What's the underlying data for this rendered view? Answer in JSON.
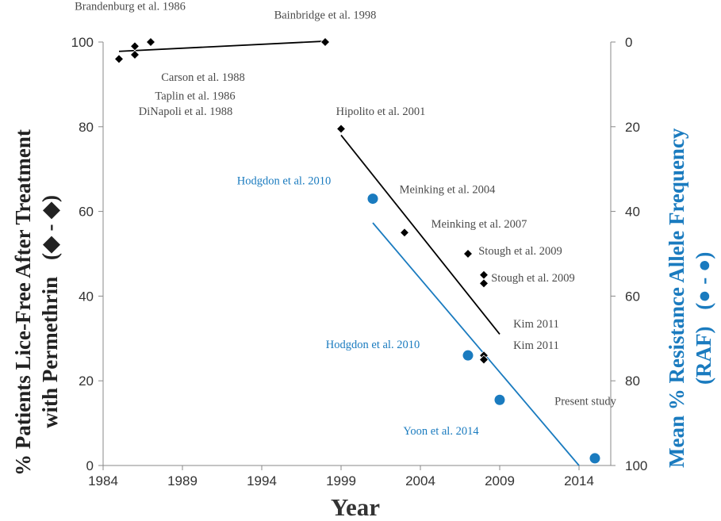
{
  "colors": {
    "black_series": "#000000",
    "blue_series": "#1a7bbf",
    "text_gray": "#4a4a4a",
    "axis": "#888888"
  },
  "chart_data": {
    "type": "scatter",
    "xlabel": "Year",
    "ylabel_left": "% Patients Lice-Free After Treatment with Permethrin (◆ - ◆)",
    "ylabel_left_lines": [
      "% Patients Lice-Free After Treatment",
      "with Permethrin"
    ],
    "ylabel_left_marker": "(◆ - ◆)",
    "ylabel_right": "Mean % Resistance Allele Frequency (RAF) (● - ●)",
    "ylabel_right_lines": [
      "Mean % Resistance Allele Frequency",
      "(RAF)"
    ],
    "ylabel_right_marker": "(● - ●)",
    "xlim": [
      1984,
      2016
    ],
    "ylim_left": [
      0,
      100
    ],
    "ylim_right": [
      100,
      0
    ],
    "right_axis_inverted": true,
    "x_ticks": [
      "1984",
      "1989",
      "1994",
      "1999",
      "2004",
      "2009",
      "2014"
    ],
    "y_left_ticks": [
      "0",
      "20",
      "40",
      "60",
      "80",
      "100"
    ],
    "y_right_ticks": [
      "100",
      "80",
      "60",
      "40",
      "20",
      "0"
    ],
    "grid": false,
    "series": [
      {
        "marker": "diamond",
        "axis": "left",
        "color": "#000000",
        "points": [
          {
            "x": 1985,
            "y": 96
          },
          {
            "x": 1986,
            "y": 99
          },
          {
            "x": 1986,
            "y": 97
          },
          {
            "x": 1987,
            "y": 100
          },
          {
            "x": 1998,
            "y": 100
          },
          {
            "x": 1999,
            "y": 79.5
          },
          {
            "x": 2003,
            "y": 55
          },
          {
            "x": 2007,
            "y": 50
          },
          {
            "x": 2008,
            "y": 45
          },
          {
            "x": 2008,
            "y": 43
          },
          {
            "x": 2008,
            "y": 26
          },
          {
            "x": 2008,
            "y": 25
          }
        ],
        "trend_lines": [
          {
            "x": [
              1985,
              1998
            ],
            "y": [
              97.8,
              100.2
            ]
          },
          {
            "x": [
              1999,
              2009
            ],
            "y": [
              78,
              31
            ]
          }
        ]
      },
      {
        "marker": "circle",
        "axis": "right",
        "color": "#1a7bbf",
        "points": [
          {
            "x": 2001,
            "y": 37
          },
          {
            "x": 2007,
            "y": 74
          },
          {
            "x": 2009,
            "y": 84.5
          },
          {
            "x": 2015,
            "y": 98.3
          }
        ],
        "trend_lines": [
          {
            "x": [
              2001,
              2014
            ],
            "y": [
              42.7,
              100
            ]
          }
        ]
      }
    ],
    "annotations": [
      {
        "text": "Brandenburg et al. 1986",
        "x": 1985.7,
        "y": 107.6,
        "color": "gray",
        "anchor": "middle"
      },
      {
        "text": "Bainbridge et al. 1998",
        "x": 1998,
        "y": 105.5,
        "color": "gray",
        "anchor": "middle"
      },
      {
        "text": "Carson et al. 1988",
        "x": 1990.3,
        "y": 90.8,
        "color": "gray",
        "anchor": "middle"
      },
      {
        "text": "Taplin et al. 1986",
        "x": 1989.8,
        "y": 86.4,
        "color": "gray",
        "anchor": "middle"
      },
      {
        "text": "DiNapoli et al. 1988",
        "x": 1989.2,
        "y": 82.8,
        "color": "gray",
        "anchor": "middle"
      },
      {
        "text": "Hipolito et al. 2001",
        "x": 2001.5,
        "y": 82.8,
        "color": "gray",
        "anchor": "middle"
      },
      {
        "text": "Hodgdon et al. 2010",
        "x": 1995.4,
        "y": 66.4,
        "color": "blue",
        "anchor": "middle"
      },
      {
        "text": "Meinking et al. 2004",
        "x": 2005.7,
        "y": 64.3,
        "color": "gray",
        "anchor": "middle"
      },
      {
        "text": "Meinking et al. 2007",
        "x": 2007.7,
        "y": 56.2,
        "color": "gray",
        "anchor": "middle"
      },
      {
        "text": "Stough et al. 2009",
        "x": 2010.3,
        "y": 49.8,
        "color": "gray",
        "anchor": "middle"
      },
      {
        "text": "Stough et al. 2009",
        "x": 2011.1,
        "y": 43.4,
        "color": "gray",
        "anchor": "middle"
      },
      {
        "text": "Kim 2011",
        "x": 2011.3,
        "y": 32.6,
        "color": "gray",
        "anchor": "middle"
      },
      {
        "text": "Hodgdon et al. 2010",
        "x": 2001,
        "y": 27.7,
        "color": "blue",
        "anchor": "middle"
      },
      {
        "text": "Kim 2011",
        "x": 2011.3,
        "y": 27.5,
        "color": "gray",
        "anchor": "middle"
      },
      {
        "text": "Present study",
        "x": 2014.4,
        "y": 14.3,
        "color": "gray",
        "anchor": "middle"
      },
      {
        "text": "Yoon et al. 2014",
        "x": 2005.3,
        "y": 7.3,
        "color": "blue",
        "anchor": "middle"
      }
    ]
  }
}
